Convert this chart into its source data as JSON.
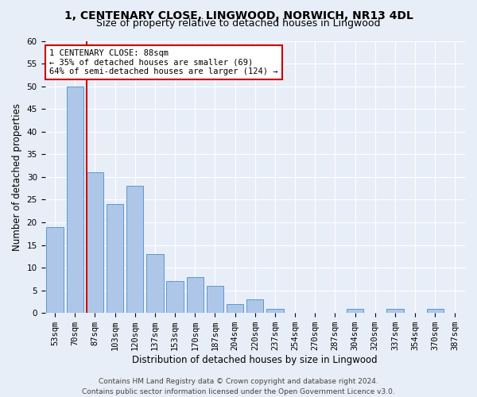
{
  "title": "1, CENTENARY CLOSE, LINGWOOD, NORWICH, NR13 4DL",
  "subtitle": "Size of property relative to detached houses in Lingwood",
  "xlabel": "Distribution of detached houses by size in Lingwood",
  "ylabel": "Number of detached properties",
  "bar_labels": [
    "53sqm",
    "70sqm",
    "87sqm",
    "103sqm",
    "120sqm",
    "137sqm",
    "153sqm",
    "170sqm",
    "187sqm",
    "204sqm",
    "220sqm",
    "237sqm",
    "254sqm",
    "270sqm",
    "287sqm",
    "304sqm",
    "320sqm",
    "337sqm",
    "354sqm",
    "370sqm",
    "387sqm"
  ],
  "bar_values": [
    19,
    50,
    31,
    24,
    28,
    13,
    7,
    8,
    6,
    2,
    3,
    1,
    0,
    0,
    0,
    1,
    0,
    1,
    0,
    1,
    0
  ],
  "bar_color": "#aec6e8",
  "bar_edge_color": "#4a90c4",
  "ylim": [
    0,
    60
  ],
  "yticks": [
    0,
    5,
    10,
    15,
    20,
    25,
    30,
    35,
    40,
    45,
    50,
    55,
    60
  ],
  "property_sqm": 88,
  "property_bin_index": 2,
  "annotation_title": "1 CENTENARY CLOSE: 88sqm",
  "annotation_line1": "← 35% of detached houses are smaller (69)",
  "annotation_line2": "64% of semi-detached houses are larger (124) →",
  "red_line_color": "#cc0000",
  "annotation_box_color": "#ffffff",
  "annotation_box_edge": "#cc0000",
  "footer1": "Contains HM Land Registry data © Crown copyright and database right 2024.",
  "footer2": "Contains public sector information licensed under the Open Government Licence v3.0.",
  "background_color": "#e8eef8",
  "grid_color": "#ffffff",
  "title_fontsize": 10,
  "subtitle_fontsize": 9,
  "axis_label_fontsize": 8.5,
  "tick_fontsize": 7.5,
  "footer_fontsize": 6.5
}
